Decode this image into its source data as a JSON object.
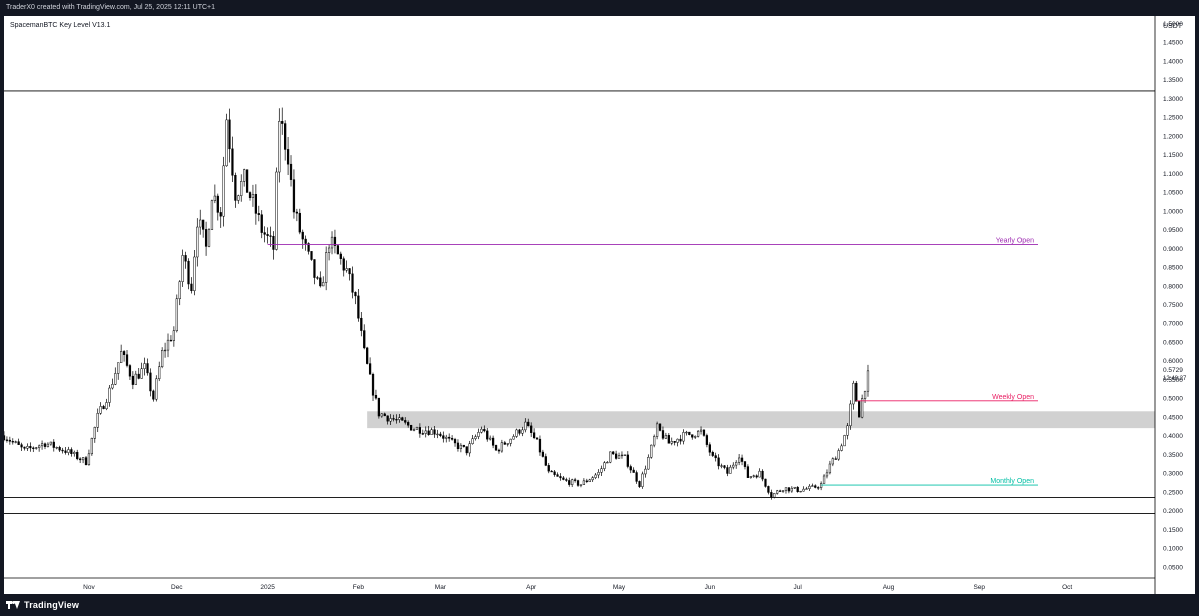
{
  "header": {
    "credit": "TraderX0 created with TradingView.com, Jul 25, 2025 12:11 UTC+1"
  },
  "footer": {
    "brand": "TradingView",
    "logo_icon": "tradingview-logo-icon"
  },
  "colors": {
    "up": "#ffffff",
    "down": "#000000",
    "wick": "#000000",
    "yearly": "#9c27b0",
    "weekly": "#e91e63",
    "monthly": "#00bfa5",
    "zone": "#d1d1d1",
    "level": "#000000"
  },
  "chart_data": {
    "type": "candlestick",
    "indicator_label": "SpacemanBTC Key Level V13.1",
    "currency": "USDT",
    "ylim": [
      0.02,
      1.52
    ],
    "y_ticks": [
      "1.5000",
      "1.4500",
      "1.4000",
      "1.3500",
      "1.3000",
      "1.2500",
      "1.2000",
      "1.1500",
      "1.1000",
      "1.0500",
      "1.0000",
      "0.9500",
      "0.9000",
      "0.8500",
      "0.8000",
      "0.7500",
      "0.7000",
      "0.6500",
      "0.6000",
      "0.5500",
      "0.5000",
      "0.4500",
      "0.4000",
      "0.3500",
      "0.3000",
      "0.2500",
      "0.2000",
      "0.1500",
      "0.1000",
      "0.0500"
    ],
    "x_range": [
      "2024-10-03",
      "2025-10-31"
    ],
    "x_ticks": [
      {
        "label": "Nov",
        "date": "2024-11-01"
      },
      {
        "label": "Dec",
        "date": "2024-12-01"
      },
      {
        "label": "2025",
        "date": "2025-01-01"
      },
      {
        "label": "Feb",
        "date": "2025-02-01"
      },
      {
        "label": "Mar",
        "date": "2025-03-01"
      },
      {
        "label": "Apr",
        "date": "2025-04-01"
      },
      {
        "label": "May",
        "date": "2025-05-01"
      },
      {
        "label": "Jun",
        "date": "2025-06-01"
      },
      {
        "label": "Jul",
        "date": "2025-07-01"
      },
      {
        "label": "Aug",
        "date": "2025-08-01"
      },
      {
        "label": "Sep",
        "date": "2025-09-01"
      },
      {
        "label": "Oct",
        "date": "2025-10-01"
      }
    ],
    "last_price": {
      "label": "0.5729",
      "countdown": "12:48:27",
      "value": 0.5729
    },
    "horizontal_levels": [
      1.32,
      0.235,
      0.192
    ],
    "zone": {
      "from": 0.42,
      "to": 0.465,
      "start": "2025-02-04"
    },
    "key_levels": [
      {
        "name": "Yearly Open",
        "value": 0.91,
        "start": "2025-01-01",
        "color": "yearly"
      },
      {
        "name": "Weekly Open",
        "value": 0.493,
        "start": "2025-07-21",
        "color": "weekly"
      },
      {
        "name": "Monthly Open",
        "value": 0.268,
        "start": "2025-07-09",
        "color": "monthly"
      }
    ],
    "price_path": [
      [
        "2024-10-03",
        0.4
      ],
      [
        "2024-10-10",
        0.36
      ],
      [
        "2024-10-17",
        0.38
      ],
      [
        "2024-10-24",
        0.36
      ],
      [
        "2024-10-31",
        0.33
      ],
      [
        "2024-11-04",
        0.45
      ],
      [
        "2024-11-08",
        0.52
      ],
      [
        "2024-11-12",
        0.62
      ],
      [
        "2024-11-16",
        0.55
      ],
      [
        "2024-11-20",
        0.58
      ],
      [
        "2024-11-23",
        0.5
      ],
      [
        "2024-11-26",
        0.62
      ],
      [
        "2024-11-30",
        0.68
      ],
      [
        "2024-12-03",
        0.88
      ],
      [
        "2024-12-06",
        0.8
      ],
      [
        "2024-12-08",
        0.98
      ],
      [
        "2024-12-11",
        0.9
      ],
      [
        "2024-12-13",
        1.05
      ],
      [
        "2024-12-16",
        1.0
      ],
      [
        "2024-12-18",
        1.25
      ],
      [
        "2024-12-21",
        1.05
      ],
      [
        "2024-12-24",
        1.08
      ],
      [
        "2024-12-27",
        1.02
      ],
      [
        "2024-12-30",
        0.95
      ],
      [
        "2025-01-03",
        0.9
      ],
      [
        "2025-01-05",
        1.25
      ],
      [
        "2025-01-08",
        1.15
      ],
      [
        "2025-01-10",
        1.0
      ],
      [
        "2025-01-13",
        0.92
      ],
      [
        "2025-01-16",
        0.85
      ],
      [
        "2025-01-19",
        0.78
      ],
      [
        "2025-01-22",
        0.92
      ],
      [
        "2025-01-25",
        0.88
      ],
      [
        "2025-01-28",
        0.84
      ],
      [
        "2025-01-31",
        0.76
      ],
      [
        "2025-02-03",
        0.62
      ],
      [
        "2025-02-05",
        0.55
      ],
      [
        "2025-02-08",
        0.46
      ],
      [
        "2025-02-14",
        0.44
      ],
      [
        "2025-02-20",
        0.42
      ],
      [
        "2025-02-28",
        0.41
      ],
      [
        "2025-03-05",
        0.38
      ],
      [
        "2025-03-10",
        0.36
      ],
      [
        "2025-03-15",
        0.42
      ],
      [
        "2025-03-20",
        0.36
      ],
      [
        "2025-03-26",
        0.4
      ],
      [
        "2025-03-30",
        0.43
      ],
      [
        "2025-04-03",
        0.38
      ],
      [
        "2025-04-07",
        0.3
      ],
      [
        "2025-04-12",
        0.28
      ],
      [
        "2025-04-18",
        0.27
      ],
      [
        "2025-04-24",
        0.3
      ],
      [
        "2025-04-28",
        0.35
      ],
      [
        "2025-05-03",
        0.34
      ],
      [
        "2025-05-08",
        0.27
      ],
      [
        "2025-05-11",
        0.34
      ],
      [
        "2025-05-14",
        0.42
      ],
      [
        "2025-05-18",
        0.38
      ],
      [
        "2025-05-23",
        0.4
      ],
      [
        "2025-05-29",
        0.41
      ],
      [
        "2025-06-02",
        0.34
      ],
      [
        "2025-06-07",
        0.3
      ],
      [
        "2025-06-11",
        0.35
      ],
      [
        "2025-06-14",
        0.29
      ],
      [
        "2025-06-18",
        0.3
      ],
      [
        "2025-06-22",
        0.24
      ],
      [
        "2025-06-26",
        0.26
      ],
      [
        "2025-07-01",
        0.255
      ],
      [
        "2025-07-06",
        0.26
      ],
      [
        "2025-07-09",
        0.27
      ],
      [
        "2025-07-12",
        0.32
      ],
      [
        "2025-07-15",
        0.36
      ],
      [
        "2025-07-18",
        0.42
      ],
      [
        "2025-07-20",
        0.53
      ],
      [
        "2025-07-22",
        0.46
      ],
      [
        "2025-07-25",
        0.57
      ]
    ]
  }
}
